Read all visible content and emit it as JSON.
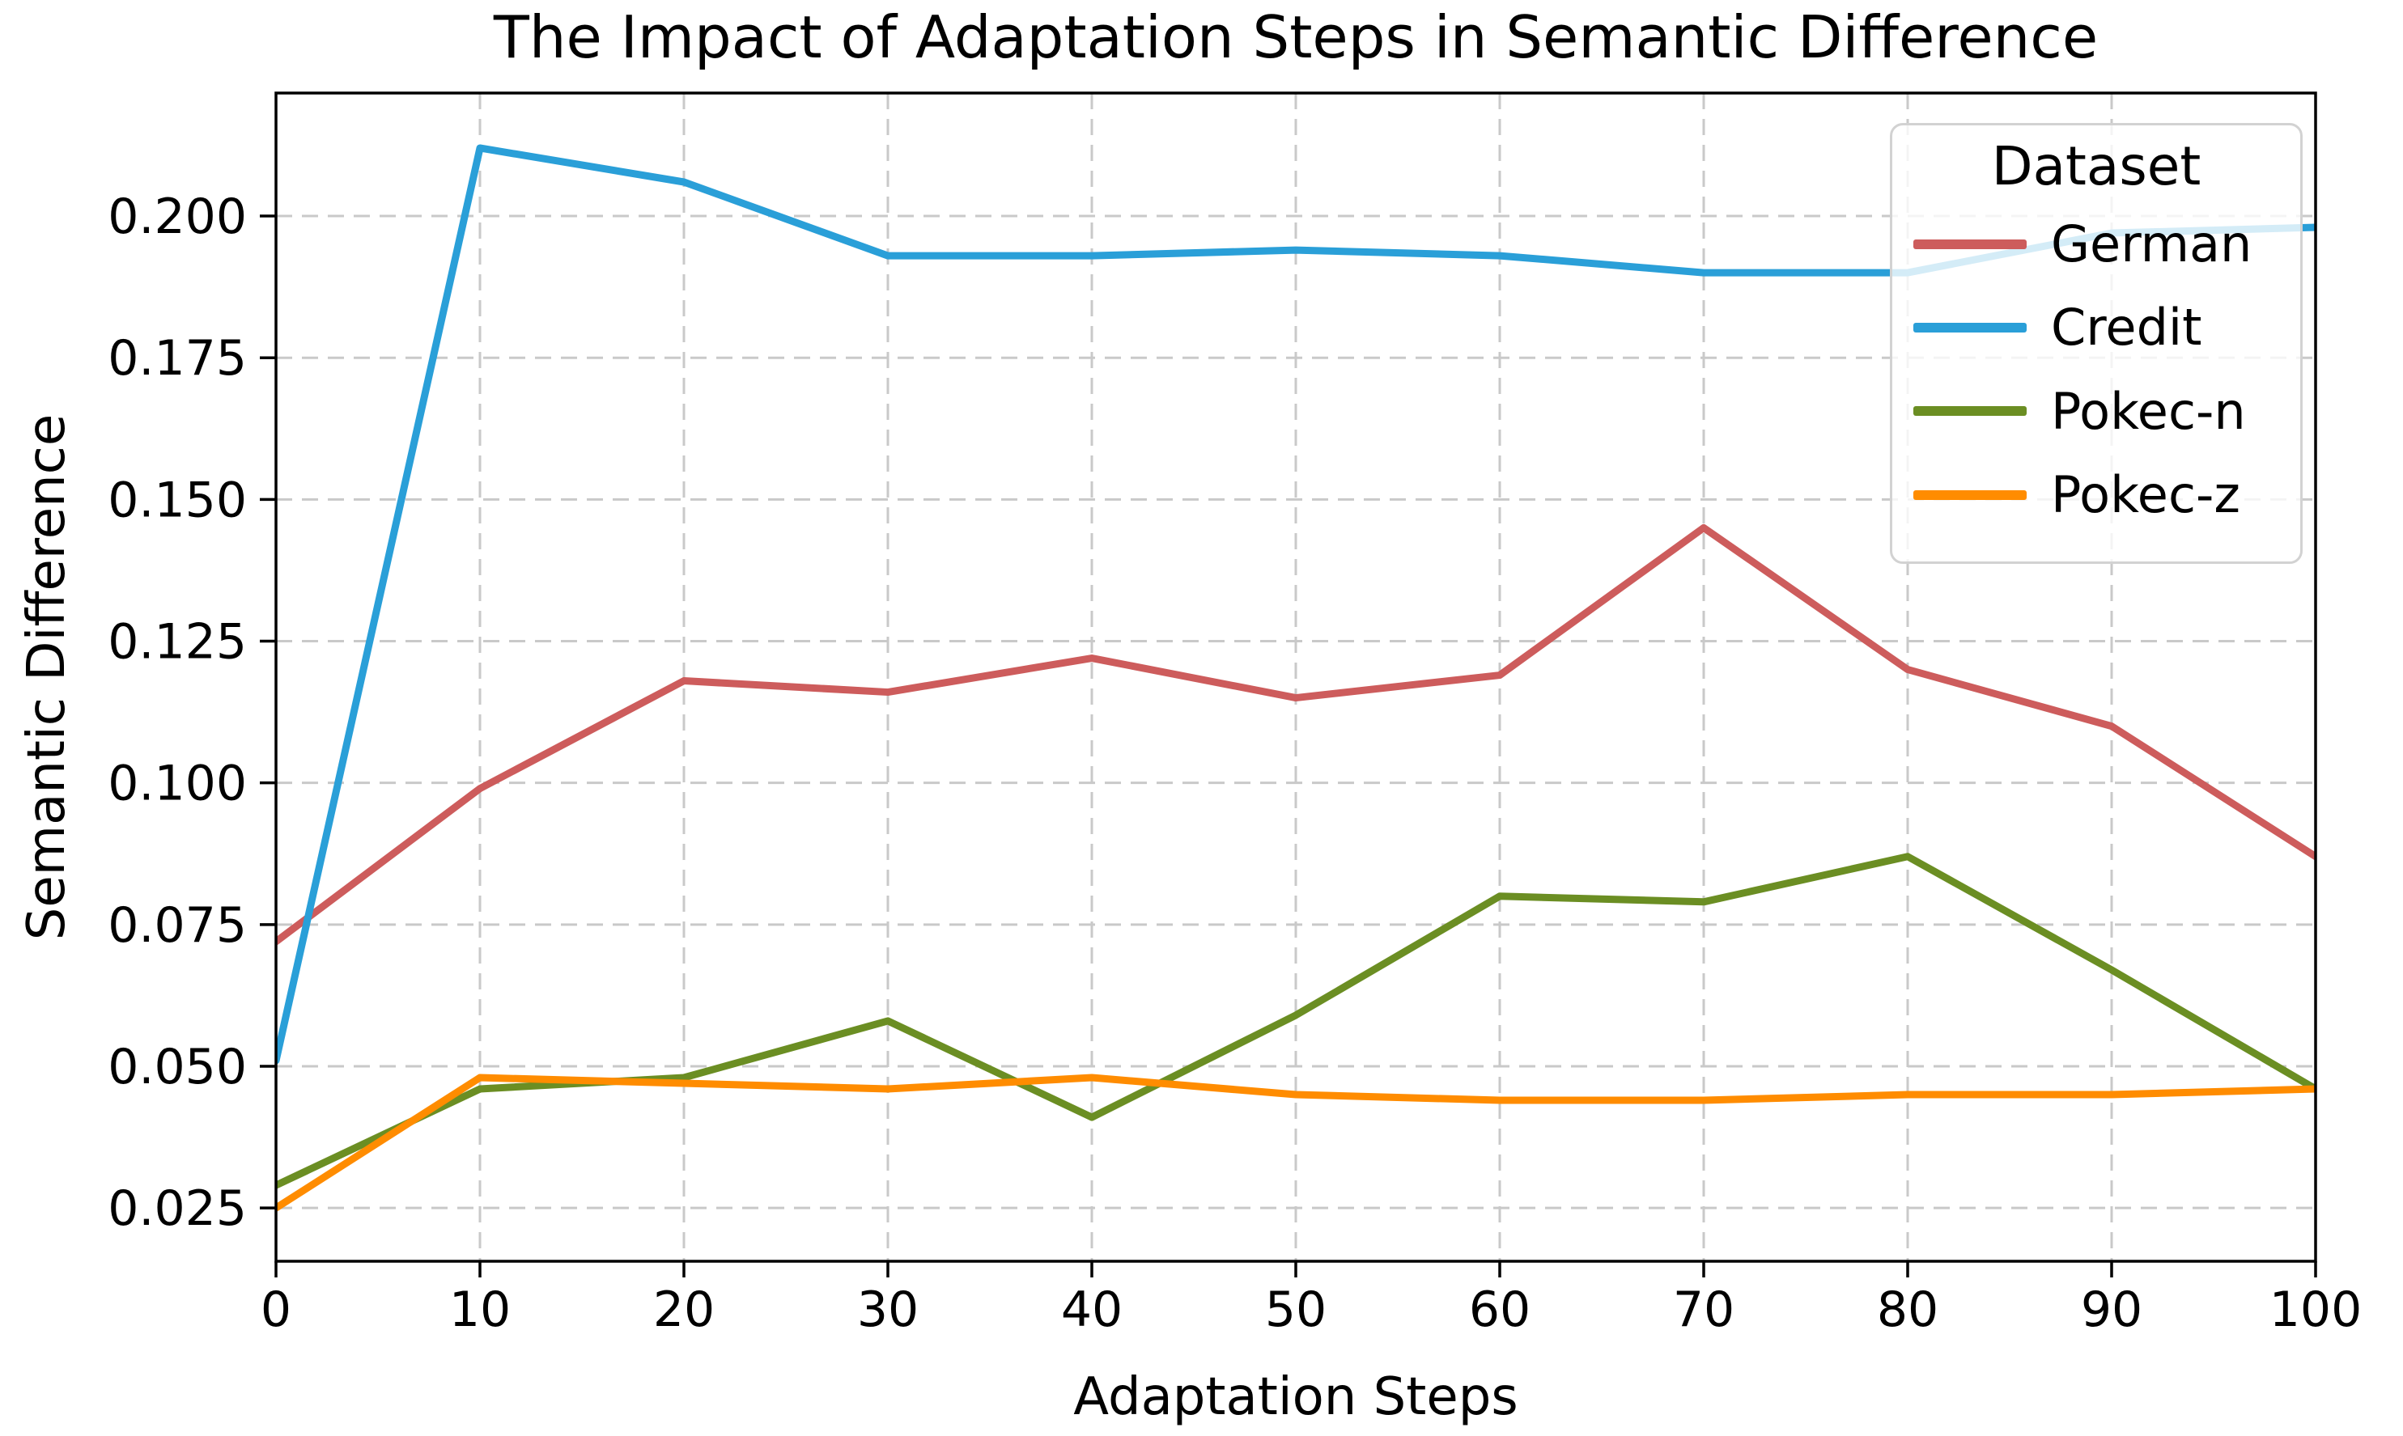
{
  "figure": {
    "background": "#ffffff"
  },
  "chart_data": {
    "type": "line",
    "title": "The Impact of Adaptation Steps in Semantic Difference",
    "xlabel": "Adaptation Steps",
    "ylabel": "Semantic Difference",
    "x": [
      0,
      10,
      20,
      30,
      40,
      50,
      60,
      70,
      80,
      90,
      100
    ],
    "x_tick_labels": [
      "0",
      "10",
      "20",
      "30",
      "40",
      "50",
      "60",
      "70",
      "80",
      "90",
      "100"
    ],
    "y_ticks": [
      0.025,
      0.05,
      0.075,
      0.1,
      0.125,
      0.15,
      0.175,
      0.2
    ],
    "y_tick_labels": [
      "0.025",
      "0.050",
      "0.075",
      "0.100",
      "0.125",
      "0.150",
      "0.175",
      "0.200"
    ],
    "xlim": [
      0,
      100
    ],
    "ylim": [
      0.0156,
      0.2217
    ],
    "grid": true,
    "legend_title": "Dataset",
    "legend_position": "upper right",
    "series": [
      {
        "name": "German",
        "color": "#CD5C5C",
        "values": [
          0.072,
          0.099,
          0.118,
          0.116,
          0.122,
          0.115,
          0.119,
          0.145,
          0.12,
          0.11,
          0.087
        ]
      },
      {
        "name": "Credit",
        "color": "#2A9FD8",
        "values": [
          0.051,
          0.212,
          0.206,
          0.193,
          0.193,
          0.194,
          0.193,
          0.19,
          0.19,
          0.197,
          0.198
        ]
      },
      {
        "name": "Pokec-n",
        "color": "#6B8E23",
        "values": [
          0.029,
          0.046,
          0.048,
          0.058,
          0.041,
          0.059,
          0.08,
          0.079,
          0.087,
          0.067,
          0.046
        ]
      },
      {
        "name": "Pokec-z",
        "color": "#FF8C00",
        "values": [
          0.025,
          0.048,
          0.047,
          0.046,
          0.048,
          0.045,
          0.044,
          0.044,
          0.045,
          0.045,
          0.046
        ]
      }
    ],
    "styles": {
      "grid_color": "#c9c9c9",
      "spine_color": "#000000",
      "tick_label_color": "#000000"
    }
  }
}
